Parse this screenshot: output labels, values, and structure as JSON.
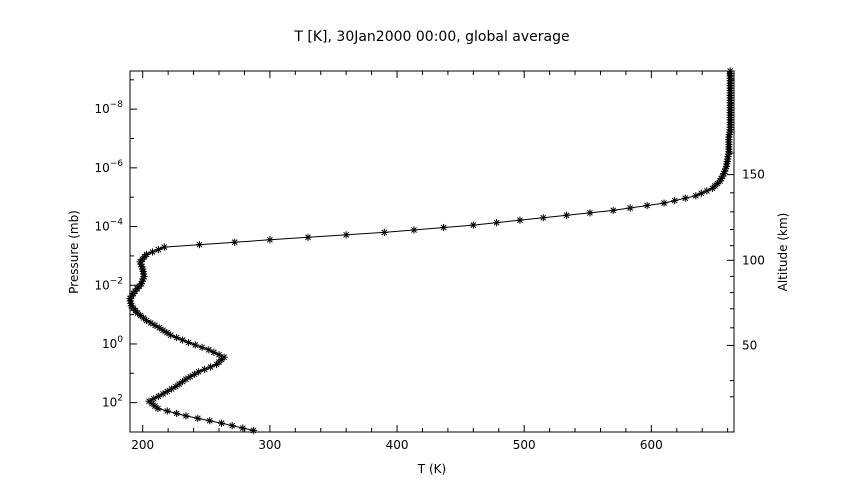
{
  "chart_data": {
    "type": "line",
    "title": "T [K], 30Jan2000 00:00, global average",
    "xlabel": "T (K)",
    "ylabel": "Pressure (mb)",
    "y2label": "Altitude (km)",
    "xlim": [
      190,
      665
    ],
    "ylim_log10": [
      3.0,
      -9.3
    ],
    "x_ticks": [
      200,
      300,
      400,
      500,
      600
    ],
    "y_ticks_log10": [
      -8,
      -6,
      -4,
      -2,
      0,
      2
    ],
    "y_tick_labels": [
      {
        "base": "10",
        "exp": "−8"
      },
      {
        "base": "10",
        "exp": "−6"
      },
      {
        "base": "10",
        "exp": "−4"
      },
      {
        "base": "10",
        "exp": "−2"
      },
      {
        "base": "10",
        "exp": "0"
      },
      {
        "base": "10",
        "exp": "2"
      }
    ],
    "alt_ticks": [
      {
        "log10p": -5.77,
        "label": "150"
      },
      {
        "log10p": -2.85,
        "label": "100"
      },
      {
        "log10p": 0.05,
        "label": "50"
      }
    ],
    "alt_minor_log10p": [
      1.8,
      1.25,
      -0.55,
      -1.2,
      -1.75,
      -2.3,
      -3.35,
      -3.9,
      -4.5,
      -5.15,
      -6.5,
      -7.3,
      -8.2,
      -9.0
    ],
    "marker": "asterisk",
    "series": [
      {
        "log10p": [
          2.95,
          2.7,
          2.45,
          2.2,
          1.95,
          1.7,
          1.45,
          1.2,
          0.95,
          0.7,
          0.45,
          0.2,
          -0.05,
          -0.3,
          -0.55,
          -0.8,
          -1.05,
          -1.3,
          -1.55,
          -1.8,
          -2.05,
          -2.3,
          -2.55,
          -2.8,
          -3.05,
          -3.3,
          -3.55,
          -3.8,
          -4.05,
          -4.3,
          -4.55,
          -4.8,
          -5.05,
          -5.3,
          -5.55,
          -5.8,
          -6.05,
          -6.3,
          -6.55,
          -6.8,
          -7.05,
          -7.3,
          -7.55,
          -7.8,
          -8.05,
          -8.3,
          -8.55,
          -8.8,
          -9.05,
          -9.3
        ],
        "temperature": [
          287,
          262,
          234,
          212,
          205,
          216,
          226,
          234,
          244,
          258,
          264,
          252,
          236,
          222,
          213,
          203,
          196,
          191,
          190,
          194,
          199,
          201,
          200,
          198,
          203,
          217,
          300,
          390,
          460,
          515,
          570,
          610,
          635,
          648,
          654,
          657,
          659,
          660,
          661,
          661,
          661,
          662,
          662,
          662,
          662,
          662,
          662,
          662,
          662,
          662
        ]
      }
    ]
  }
}
